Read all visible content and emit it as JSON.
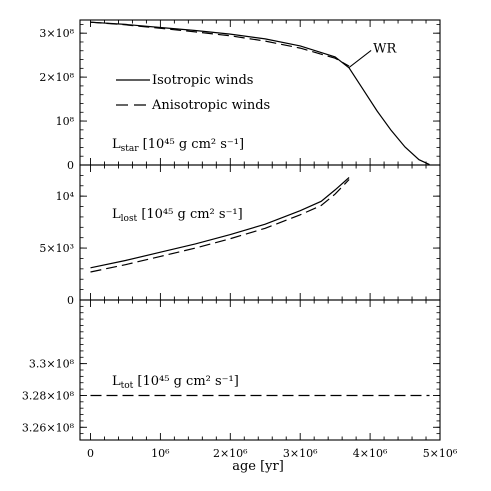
{
  "chart_data": [
    {
      "panel": "top",
      "type": "line",
      "ylim": [
        0,
        330000000
      ],
      "yticks": [
        {
          "v": 0,
          "label": "0"
        },
        {
          "v": 100000000,
          "label": "10⁸"
        },
        {
          "v": 200000000,
          "label": "2×10⁸"
        },
        {
          "v": 300000000,
          "label": "3×10⁸"
        }
      ],
      "panel_label_main": "L",
      "panel_label_sub": "star",
      "panel_label_units": " [10⁴⁵ g cm² s⁻¹]",
      "annotation": {
        "text": "WR",
        "x": 3700000,
        "y": 222000000
      },
      "legend": [
        {
          "label": "Isotropic winds",
          "style": "solid"
        },
        {
          "label": "Anisotropic winds",
          "style": "dashed"
        }
      ],
      "series": [
        {
          "name": "Isotropic winds",
          "style": "solid",
          "x": [
            0,
            500000,
            1000000,
            1500000,
            2000000,
            2500000,
            3000000,
            3500000,
            3700000,
            3900000,
            4100000,
            4300000,
            4500000,
            4700000,
            4850000
          ],
          "y": [
            325000000,
            320000000,
            313000000,
            306000000,
            298000000,
            287000000,
            271000000,
            246000000,
            221000000,
            172000000,
            123000000,
            79000000,
            41000000,
            12000000,
            1000000
          ]
        },
        {
          "name": "Anisotropic winds",
          "style": "dashed",
          "x": [
            0,
            500000,
            1000000,
            1500000,
            2000000,
            2500000,
            3000000,
            3500000,
            3700000
          ],
          "y": [
            325000000,
            319000000,
            311000000,
            303000000,
            294000000,
            282000000,
            266000000,
            243000000,
            225000000
          ]
        }
      ]
    },
    {
      "panel": "middle",
      "type": "line",
      "ylim": [
        0,
        13000
      ],
      "yticks": [
        {
          "v": 0,
          "label": "0"
        },
        {
          "v": 5000,
          "label": "5×10³"
        },
        {
          "v": 10000,
          "label": "10⁴"
        }
      ],
      "panel_label_main": "L",
      "panel_label_sub": "lost",
      "panel_label_units": " [10⁴⁵ g cm² s⁻¹]",
      "series": [
        {
          "name": "Isotropic winds",
          "style": "solid",
          "x": [
            0,
            500000,
            1000000,
            1500000,
            2000000,
            2500000,
            3000000,
            3300000,
            3500000,
            3700000
          ],
          "y": [
            3100,
            3800,
            4600,
            5400,
            6300,
            7300,
            8600,
            9500,
            10600,
            11800
          ]
        },
        {
          "name": "Anisotropic winds",
          "style": "dashed",
          "x": [
            0,
            500000,
            1000000,
            1500000,
            2000000,
            2500000,
            3000000,
            3300000,
            3500000,
            3700000
          ],
          "y": [
            2700,
            3400,
            4200,
            5000,
            5900,
            6900,
            8200,
            9100,
            10200,
            11600
          ]
        }
      ]
    },
    {
      "panel": "bottom",
      "type": "line",
      "ylim": [
        325200000,
        334000000
      ],
      "yticks": [
        {
          "v": 326000000,
          "label": "3.26×10⁸"
        },
        {
          "v": 328000000,
          "label": "3.28×10⁸"
        },
        {
          "v": 330000000,
          "label": "3.3×10⁸"
        }
      ],
      "panel_label_main": "L",
      "panel_label_sub": "tot",
      "panel_label_units": " [10⁴⁵ g cm² s⁻¹]",
      "series": [
        {
          "name": "Anisotropic winds",
          "style": "dashed",
          "x": [
            0,
            4850000
          ],
          "y": [
            328000000,
            328000000
          ]
        }
      ]
    }
  ],
  "xaxis": {
    "label": "age [yr]",
    "xlim": [
      -150000,
      5000000
    ],
    "ticks": [
      {
        "v": 0,
        "label": "0"
      },
      {
        "v": 1000000,
        "label": "10⁶"
      },
      {
        "v": 2000000,
        "label": "2×10⁶"
      },
      {
        "v": 3000000,
        "label": "3×10⁶"
      },
      {
        "v": 4000000,
        "label": "4×10⁶"
      },
      {
        "v": 5000000,
        "label": "5×10⁶"
      }
    ]
  }
}
